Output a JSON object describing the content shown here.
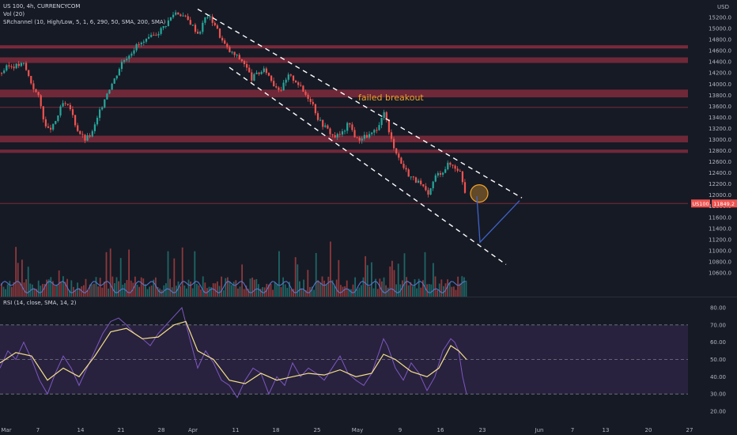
{
  "header": {
    "symbol": "US 100, 4h, CURRENCYCOM",
    "volume": "Vol (20)",
    "indicator": "SRchannel (10, High/Low, 5, 1, 6, 290, 50, SMA, 200, SMA)",
    "currency": "USD"
  },
  "rsi_header": "RSI (14, close, SMA, 14, 2)",
  "annotation": "failed breakout",
  "colors": {
    "background": "#161a25",
    "up": "#26a69a",
    "down": "#ef5350",
    "zone": "#8e2e3f",
    "rsi_line": "#7e57c2",
    "rsi_ma": "#f5e089",
    "rsi_band": "#2b2443",
    "circle": "#f0a32a",
    "projection": "#3f63c8",
    "price_badge": "#ef5350"
  },
  "chart_data": [
    {
      "type": "candlestick",
      "symbol": "US 100",
      "timeframe": "4h",
      "y_ticks": [
        15200,
        15000,
        14800,
        14600,
        14400,
        14200,
        14000,
        13800,
        13600,
        13400,
        13200,
        13000,
        12800,
        12600,
        12400,
        12200,
        12000,
        11800,
        11600,
        11400,
        11200,
        11000,
        10800,
        10600
      ],
      "x_ticks": [
        "Mar",
        "7",
        "14",
        "21",
        "28",
        "Apr",
        "11",
        "18",
        "25",
        "May",
        "9",
        "16",
        "23",
        "Jun",
        "7",
        "13",
        "20",
        "27"
      ],
      "ylim": [
        10500,
        15350
      ],
      "last_price_label": "US100",
      "last_price": "11849.2",
      "close_path": [
        [
          0,
          14200
        ],
        [
          9,
          14320
        ],
        [
          19,
          14330
        ],
        [
          29,
          14360
        ],
        [
          39,
          14000
        ],
        [
          48,
          13750
        ],
        [
          58,
          13150
        ],
        [
          67,
          13250
        ],
        [
          78,
          13650
        ],
        [
          88,
          13550
        ],
        [
          96,
          13200
        ],
        [
          106,
          13000
        ],
        [
          115,
          13100
        ],
        [
          125,
          13500
        ],
        [
          134,
          13850
        ],
        [
          144,
          14100
        ],
        [
          153,
          14400
        ],
        [
          163,
          14550
        ],
        [
          172,
          14700
        ],
        [
          181,
          14750
        ],
        [
          191,
          14850
        ],
        [
          200,
          14950
        ],
        [
          210,
          15100
        ],
        [
          220,
          15300
        ],
        [
          229,
          15250
        ],
        [
          240,
          15100
        ],
        [
          250,
          14900
        ],
        [
          260,
          15250
        ],
        [
          270,
          15100
        ],
        [
          279,
          14800
        ],
        [
          288,
          14600
        ],
        [
          298,
          14500
        ],
        [
          307,
          14400
        ],
        [
          317,
          14100
        ],
        [
          326,
          14200
        ],
        [
          335,
          14250
        ],
        [
          345,
          14000
        ],
        [
          354,
          13900
        ],
        [
          364,
          14150
        ],
        [
          374,
          14050
        ],
        [
          383,
          13850
        ],
        [
          393,
          13700
        ],
        [
          402,
          13350
        ],
        [
          412,
          13200
        ],
        [
          421,
          13050
        ],
        [
          431,
          13100
        ],
        [
          440,
          13300
        ],
        [
          450,
          13000
        ],
        [
          459,
          13050
        ],
        [
          469,
          13100
        ],
        [
          478,
          13200
        ],
        [
          485,
          13550
        ],
        [
          491,
          13100
        ],
        [
          498,
          12850
        ],
        [
          507,
          12550
        ],
        [
          517,
          12350
        ],
        [
          526,
          12250
        ],
        [
          536,
          12100
        ],
        [
          541,
          11950
        ],
        [
          545,
          12200
        ],
        [
          550,
          12350
        ],
        [
          555,
          12400
        ],
        [
          560,
          12450
        ],
        [
          565,
          12550
        ],
        [
          570,
          12550
        ],
        [
          575,
          12500
        ],
        [
          580,
          12450
        ],
        [
          585,
          12200
        ],
        [
          590,
          11850
        ]
      ],
      "sr_zones": [
        [
          14640,
          14700
        ],
        [
          14380,
          14480
        ],
        [
          13760,
          13900
        ],
        [
          12950,
          13070
        ],
        [
          12760,
          12820
        ]
      ],
      "sr_lines": [
        14660,
        13580,
        11850
      ],
      "channel_upper": [
        [
          250,
          15350
        ],
        [
          660,
          11950
        ]
      ],
      "channel_lower": [
        [
          290,
          14300
        ],
        [
          640,
          10750
        ]
      ],
      "projection_path": [
        [
          603,
          11980
        ],
        [
          607,
          11150
        ],
        [
          657,
          11900
        ]
      ],
      "annotation": {
        "text": "failed breakout",
        "x": 485,
        "y": 13620
      }
    },
    {
      "type": "bar",
      "name": "Vol (20)",
      "note": "volume bars with moving average, unlabeled values"
    },
    {
      "type": "line",
      "name": "RSI",
      "y_ticks": [
        80,
        70,
        60,
        50,
        40,
        30,
        20
      ],
      "ylim": [
        17,
        83
      ],
      "upper_band": 70,
      "mid_band": 50,
      "lower_band": 30,
      "series": [
        {
          "values": [
            [
              0,
              45
            ],
            [
              10,
              55
            ],
            [
              20,
              50
            ],
            [
              30,
              60
            ],
            [
              40,
              50
            ],
            [
              50,
              38
            ],
            [
              60,
              30
            ],
            [
              70,
              42
            ],
            [
              80,
              52
            ],
            [
              90,
              45
            ],
            [
              100,
              35
            ],
            [
              110,
              45
            ],
            [
              120,
              55
            ],
            [
              130,
              65
            ],
            [
              140,
              72
            ],
            [
              150,
              74
            ],
            [
              160,
              70
            ],
            [
              170,
              65
            ],
            [
              180,
              62
            ],
            [
              190,
              58
            ],
            [
              200,
              65
            ],
            [
              210,
              70
            ],
            [
              220,
              75
            ],
            [
              230,
              80
            ],
            [
              240,
              62
            ],
            [
              250,
              45
            ],
            [
              260,
              55
            ],
            [
              270,
              48
            ],
            [
              280,
              38
            ],
            [
              290,
              35
            ],
            [
              300,
              28
            ],
            [
              310,
              38
            ],
            [
              320,
              45
            ],
            [
              330,
              42
            ],
            [
              340,
              30
            ],
            [
              350,
              40
            ],
            [
              360,
              35
            ],
            [
              370,
              48
            ],
            [
              380,
              40
            ],
            [
              390,
              45
            ],
            [
              400,
              42
            ],
            [
              410,
              38
            ],
            [
              420,
              45
            ],
            [
              430,
              52
            ],
            [
              440,
              42
            ],
            [
              450,
              38
            ],
            [
              460,
              35
            ],
            [
              470,
              42
            ],
            [
              480,
              55
            ],
            [
              485,
              62
            ],
            [
              490,
              58
            ],
            [
              500,
              45
            ],
            [
              510,
              38
            ],
            [
              520,
              48
            ],
            [
              530,
              42
            ],
            [
              540,
              32
            ],
            [
              550,
              40
            ],
            [
              560,
              55
            ],
            [
              570,
              62
            ],
            [
              575,
              60
            ],
            [
              580,
              55
            ],
            [
              585,
              40
            ],
            [
              590,
              30
            ]
          ]
        },
        {
          "values": [
            [
              0,
              48
            ],
            [
              20,
              54
            ],
            [
              40,
              52
            ],
            [
              60,
              38
            ],
            [
              80,
              45
            ],
            [
              100,
              40
            ],
            [
              120,
              52
            ],
            [
              140,
              66
            ],
            [
              160,
              68
            ],
            [
              180,
              62
            ],
            [
              200,
              63
            ],
            [
              220,
              70
            ],
            [
              235,
              72
            ],
            [
              250,
              55
            ],
            [
              270,
              50
            ],
            [
              290,
              38
            ],
            [
              310,
              36
            ],
            [
              330,
              42
            ],
            [
              350,
              38
            ],
            [
              370,
              40
            ],
            [
              390,
              42
            ],
            [
              410,
              41
            ],
            [
              430,
              44
            ],
            [
              450,
              40
            ],
            [
              470,
              42
            ],
            [
              485,
              53
            ],
            [
              500,
              50
            ],
            [
              520,
              43
            ],
            [
              540,
              40
            ],
            [
              555,
              45
            ],
            [
              570,
              58
            ],
            [
              580,
              55
            ],
            [
              590,
              50
            ]
          ]
        }
      ],
      "x_ticks": [
        "Mar",
        "7",
        "14",
        "21",
        "28",
        "Apr",
        "11",
        "18",
        "25",
        "May",
        "9",
        "16",
        "23",
        "Jun",
        "7",
        "13",
        "20",
        "27"
      ]
    }
  ]
}
